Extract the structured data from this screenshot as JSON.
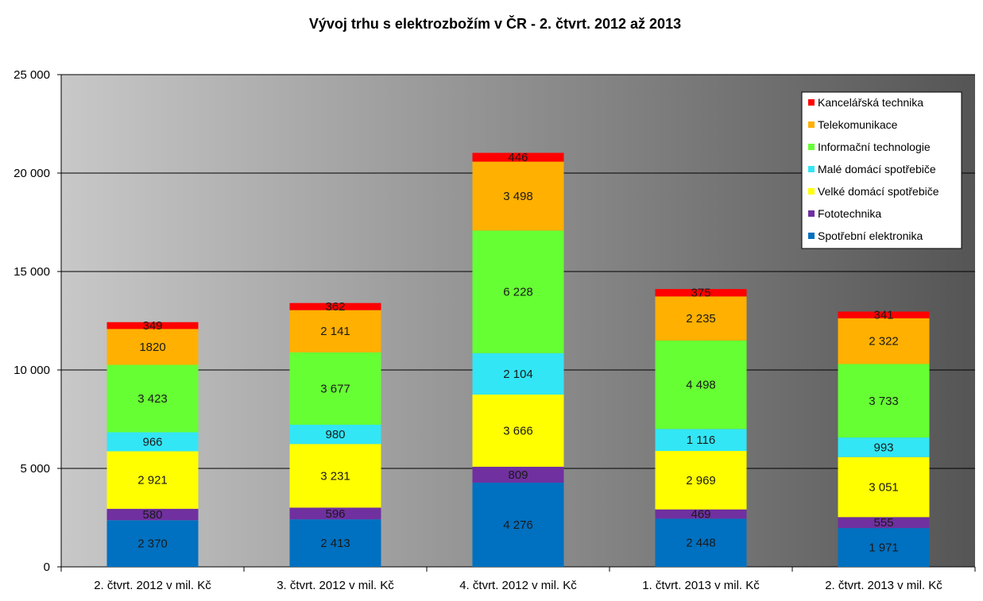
{
  "chart_data": {
    "type": "bar",
    "stacked": true,
    "title": "Vývoj trhu s elektrozbožím v ČR - 2. čtvrt. 2012 až 2013",
    "xlabel": "",
    "ylabel": "",
    "ylim": [
      0,
      25000
    ],
    "yticks": [
      0,
      5000,
      10000,
      15000,
      20000,
      25000
    ],
    "ytick_labels": [
      "0",
      "5 000",
      "10 000",
      "15 000",
      "20 000",
      "25 000"
    ],
    "grid": true,
    "legend_position": "top-right",
    "categories": [
      "2. čtvrt. 2012 v mil. Kč",
      "3. čtvrt. 2012 v mil. Kč",
      "4. čtvrt. 2012 v mil. Kč",
      "1. čtvrt. 2013 v mil. Kč",
      "2. čtvrt. 2013 v mil. Kč"
    ],
    "series": [
      {
        "name": "Spotřební elektronika",
        "color": "#0070c0",
        "values": [
          2370,
          2413,
          4276,
          2448,
          1971
        ],
        "labels": [
          "2 370",
          "2 413",
          "4 276",
          "2 448",
          "1 971"
        ]
      },
      {
        "name": "Fototechnika",
        "color": "#7030a0",
        "values": [
          580,
          596,
          809,
          469,
          555
        ],
        "labels": [
          "580",
          "596",
          "809",
          "469",
          "555"
        ]
      },
      {
        "name": "Velké domácí spotřebiče",
        "color": "#ffff00",
        "values": [
          2921,
          3231,
          3666,
          2969,
          3051
        ],
        "labels": [
          "2 921",
          "3 231",
          "3 666",
          "2 969",
          "3 051"
        ]
      },
      {
        "name": "Malé domácí spotřebiče",
        "color": "#33e6f5",
        "values": [
          966,
          980,
          2104,
          1116,
          993
        ],
        "labels": [
          "966",
          "980",
          "2 104",
          "1 116",
          "993"
        ]
      },
      {
        "name": "Informační technologie",
        "color": "#66ff33",
        "values": [
          3423,
          3677,
          6228,
          4498,
          3733
        ],
        "labels": [
          "3 423",
          "3 677",
          "6 228",
          "4 498",
          "3 733"
        ]
      },
      {
        "name": "Telekomunikace",
        "color": "#ffb000",
        "values": [
          1820,
          2141,
          3498,
          2235,
          2322
        ],
        "labels": [
          "1820",
          "2 141",
          "3 498",
          "2 235",
          "2 322"
        ]
      },
      {
        "name": "Kancelářská technika",
        "color": "#ff0000",
        "values": [
          349,
          362,
          446,
          375,
          341
        ],
        "labels": [
          "349",
          "362",
          "446",
          "375",
          "341"
        ]
      }
    ],
    "legend_order": [
      "Kancelářská technika",
      "Telekomunikace",
      "Informační technologie",
      "Malé domácí spotřebiče",
      "Velké domácí spotřebiče",
      "Fototechnika",
      "Spotřební elektronika"
    ]
  }
}
